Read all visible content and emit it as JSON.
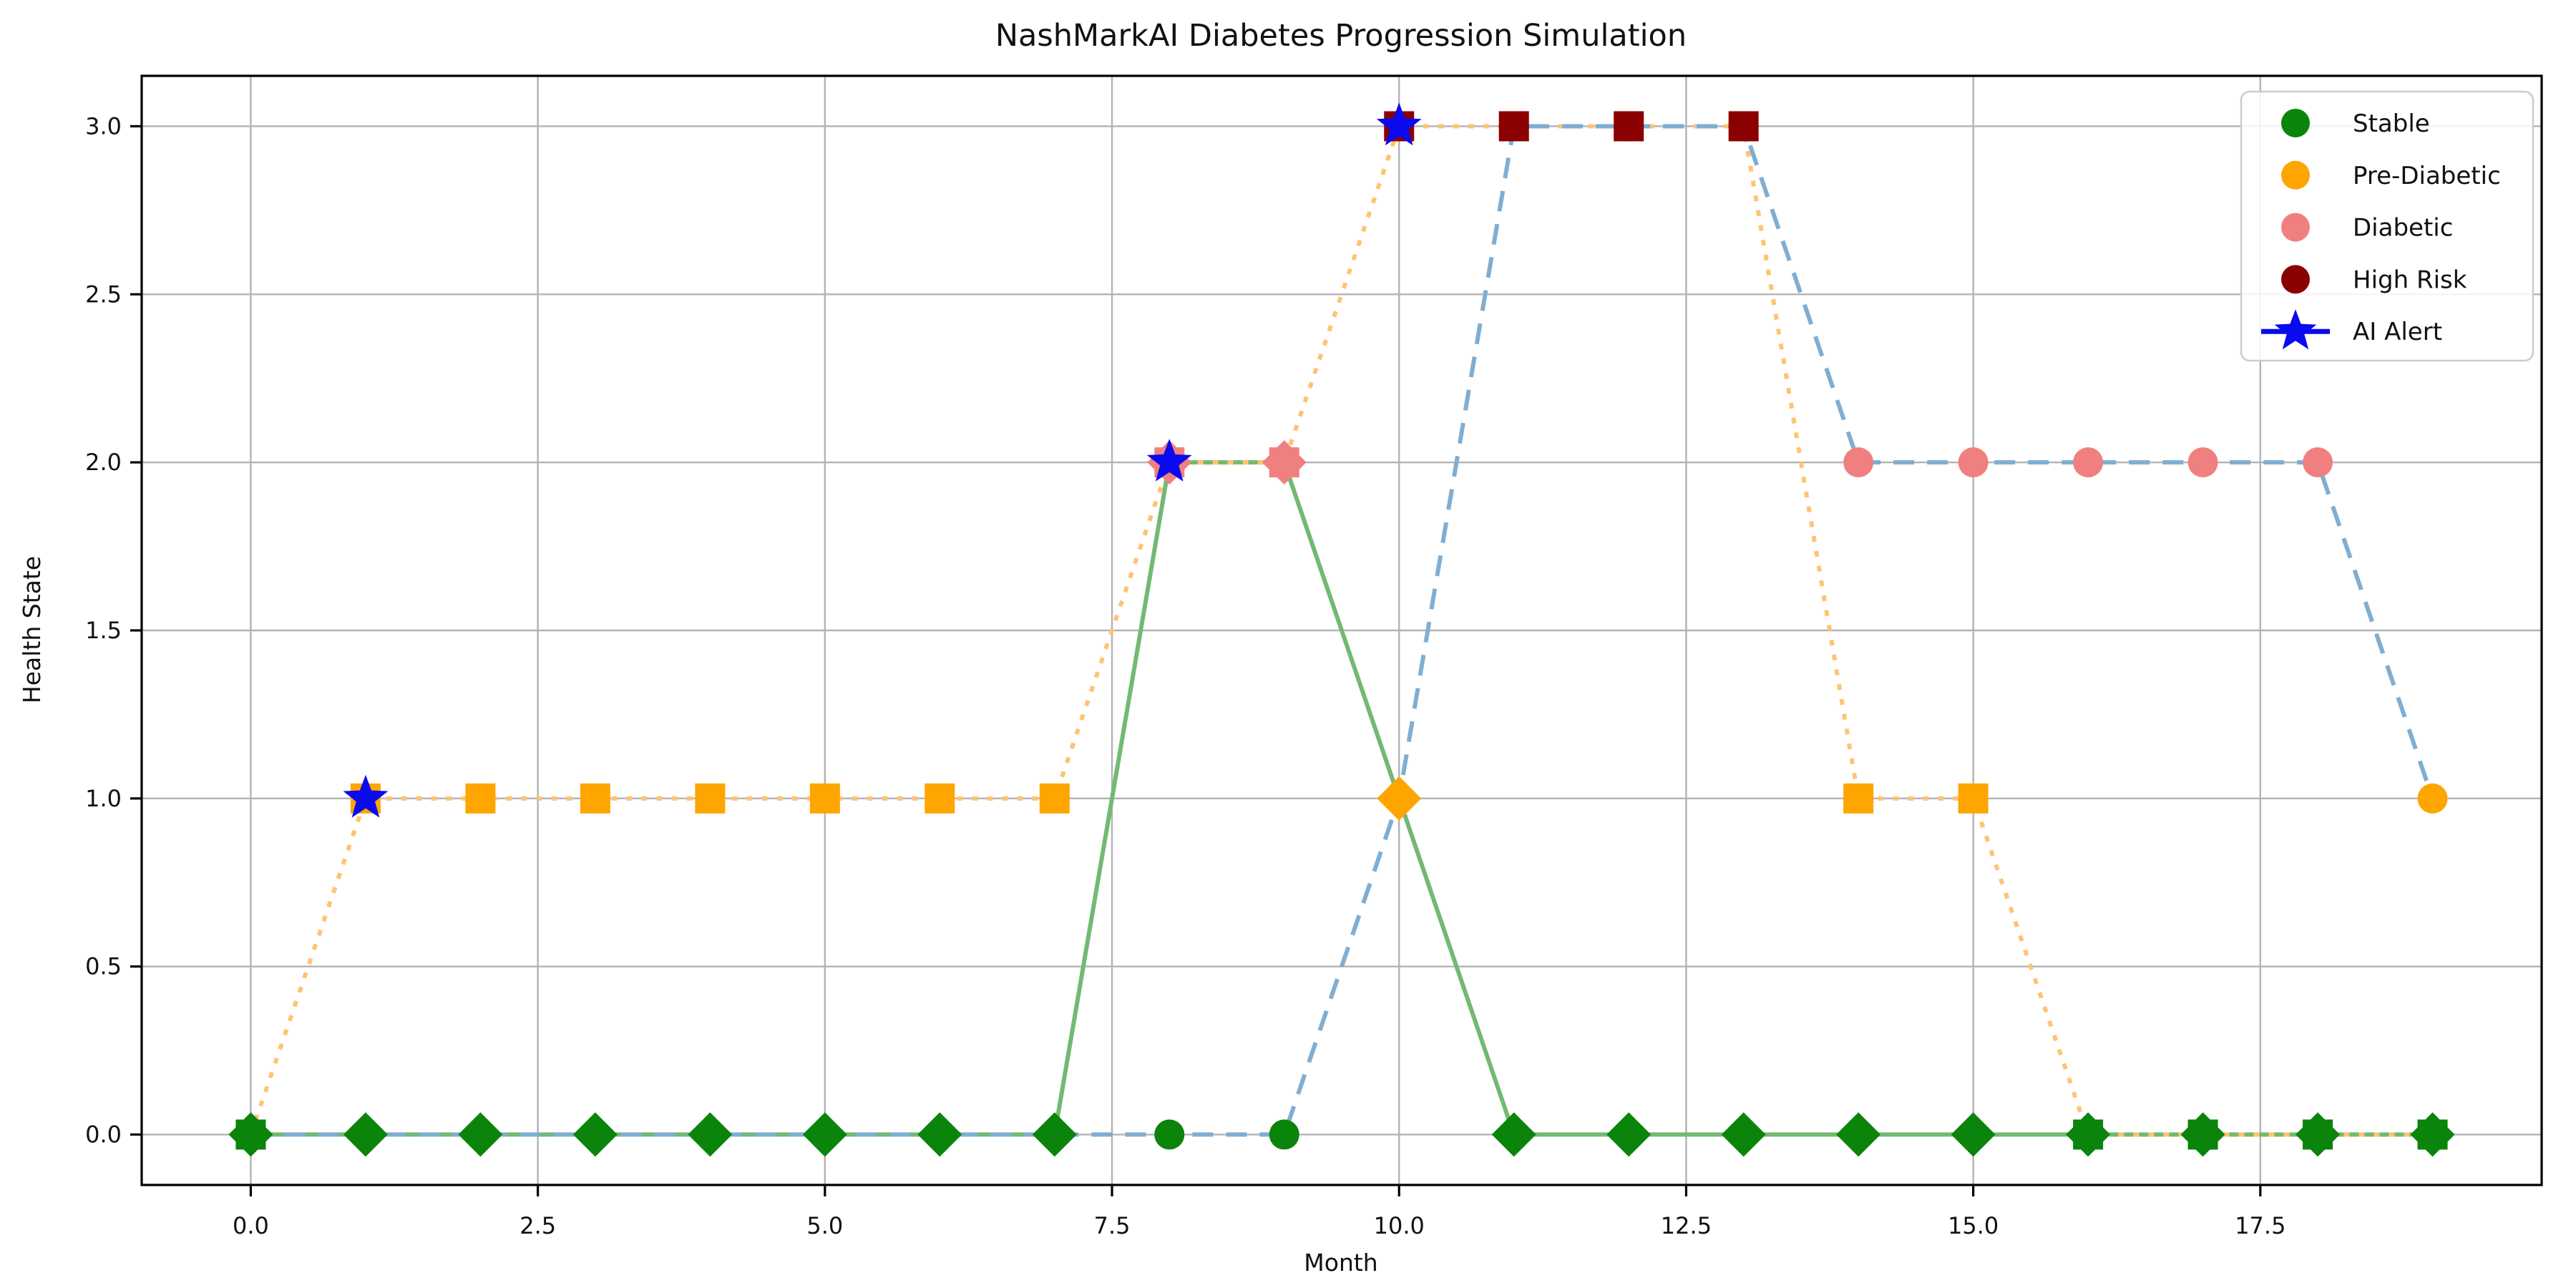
{
  "chart_data": {
    "type": "line",
    "title": "NashMarkAI Diabetes Progression Simulation",
    "xlabel": "Month",
    "ylabel": "Health State",
    "xlim": [
      -0.95,
      19.95
    ],
    "ylim": [
      -0.15,
      3.15
    ],
    "grid": true,
    "legend_position": "upper right",
    "xticks": [
      {
        "value": 0.0,
        "label": "0.0"
      },
      {
        "value": 2.5,
        "label": "2.5"
      },
      {
        "value": 5.0,
        "label": "5.0"
      },
      {
        "value": 7.5,
        "label": "7.5"
      },
      {
        "value": 10.0,
        "label": "10.0"
      },
      {
        "value": 12.5,
        "label": "12.5"
      },
      {
        "value": 15.0,
        "label": "15.0"
      },
      {
        "value": 17.5,
        "label": "17.5"
      }
    ],
    "yticks": [
      {
        "value": 0.0,
        "label": "0.0"
      },
      {
        "value": 0.5,
        "label": "0.5"
      },
      {
        "value": 1.0,
        "label": "1.0"
      },
      {
        "value": 1.5,
        "label": "1.5"
      },
      {
        "value": 2.0,
        "label": "2.0"
      },
      {
        "value": 2.5,
        "label": "2.5"
      },
      {
        "value": 3.0,
        "label": "3.0"
      }
    ],
    "x": [
      0,
      1,
      2,
      3,
      4,
      5,
      6,
      7,
      8,
      9,
      10,
      11,
      12,
      13,
      14,
      15,
      16,
      17,
      18,
      19
    ],
    "state_colors": {
      "0": "#0b840b",
      "1": "#ffa500",
      "2": "#f08080",
      "3": "#8b0000"
    },
    "state_names": {
      "0": "Stable",
      "1": "Pre-Diabetic",
      "2": "Diabetic",
      "3": "High Risk"
    },
    "series": [
      {
        "id": "patient-a",
        "line_style": "solid",
        "line_color": "#73b973",
        "marker": "diamond",
        "values": [
          0,
          0,
          0,
          0,
          0,
          0,
          0,
          0,
          2,
          2,
          1,
          0,
          0,
          0,
          0,
          0,
          0,
          0,
          0,
          0
        ]
      },
      {
        "id": "patient-b",
        "line_style": "dotted",
        "line_color": "#ffc373",
        "marker": "square",
        "values": [
          0,
          1,
          1,
          1,
          1,
          1,
          1,
          1,
          2,
          2,
          3,
          3,
          3,
          3,
          1,
          1,
          0,
          0,
          0,
          0
        ]
      },
      {
        "id": "patient-c",
        "line_style": "dashed",
        "line_color": "#7faed2",
        "marker": "circle",
        "values": [
          0,
          0,
          0,
          0,
          0,
          0,
          0,
          0,
          0,
          0,
          1,
          3,
          3,
          3,
          2,
          2,
          2,
          2,
          2,
          1
        ]
      }
    ],
    "alerts": {
      "color": "#0a0aee",
      "points": [
        {
          "x": 1,
          "y": 1
        },
        {
          "x": 8,
          "y": 2
        },
        {
          "x": 10,
          "y": 3
        }
      ]
    },
    "legend": [
      {
        "label": "Stable",
        "color": "#0b840b",
        "swatch": "dot"
      },
      {
        "label": "Pre-Diabetic",
        "color": "#ffa500",
        "swatch": "dot"
      },
      {
        "label": "Diabetic",
        "color": "#f08080",
        "swatch": "dot"
      },
      {
        "label": "High Risk",
        "color": "#8b0000",
        "swatch": "dot"
      },
      {
        "label": "AI Alert",
        "color": "#0a0aee",
        "swatch": "star-line"
      }
    ]
  }
}
